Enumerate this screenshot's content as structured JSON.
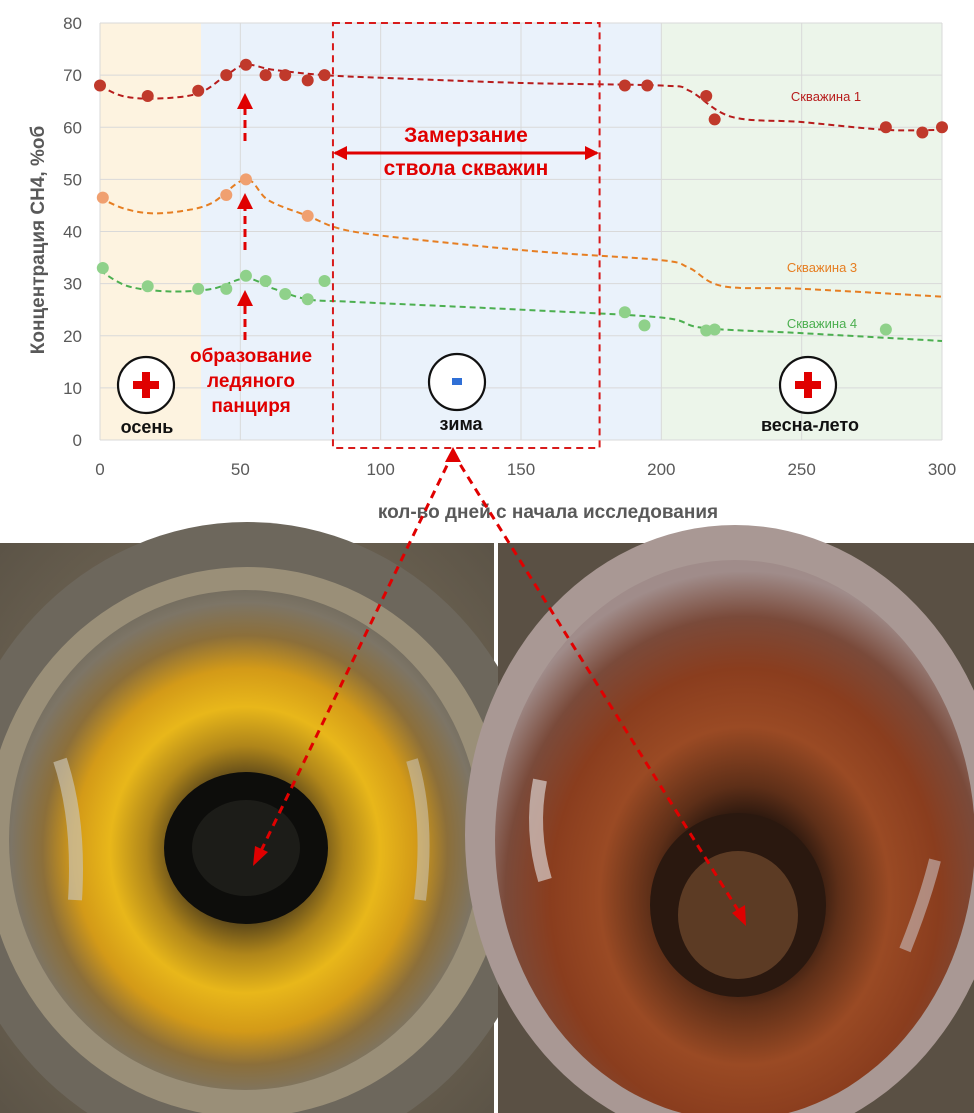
{
  "chart_data": {
    "type": "scatter",
    "title": "",
    "xlabel": "кол-во дней с начала исследования",
    "ylabel": "Концентрация СН4, %об",
    "xlim": [
      0,
      300
    ],
    "ylim": [
      0,
      80
    ],
    "x_ticks": [
      0,
      50,
      100,
      150,
      200,
      250,
      300
    ],
    "y_ticks": [
      0,
      10,
      20,
      30,
      40,
      50,
      60,
      70,
      80
    ],
    "grid": "on",
    "series": [
      {
        "name": "Скважина 1",
        "color": "#c0392b",
        "trend_color": "#b71c1c",
        "points": [
          [
            0,
            68
          ],
          [
            17,
            66
          ],
          [
            35,
            67
          ],
          [
            45,
            70
          ],
          [
            52,
            72
          ],
          [
            59,
            70
          ],
          [
            66,
            70
          ],
          [
            74,
            69
          ],
          [
            80,
            70
          ],
          [
            187,
            68
          ],
          [
            195,
            68
          ],
          [
            216,
            66
          ],
          [
            219,
            61.5
          ],
          [
            280,
            60
          ],
          [
            293,
            59
          ],
          [
            300,
            60
          ]
        ],
        "trend": [
          [
            0,
            68
          ],
          [
            8,
            66
          ],
          [
            20,
            65.5
          ],
          [
            35,
            66.5
          ],
          [
            45,
            70
          ],
          [
            52,
            72
          ],
          [
            62,
            71
          ],
          [
            80,
            70
          ],
          [
            100,
            69.5
          ],
          [
            150,
            68.5
          ],
          [
            200,
            68
          ],
          [
            210,
            67
          ],
          [
            225,
            62
          ],
          [
            250,
            61
          ],
          [
            280,
            59.5
          ],
          [
            300,
            59.5
          ]
        ]
      },
      {
        "name": "Скважина 3",
        "color": "#f0a070",
        "trend_color": "#e67e22",
        "points": [
          [
            1,
            46.5
          ],
          [
            45,
            47
          ],
          [
            52,
            50
          ],
          [
            74,
            43
          ]
        ],
        "trend": [
          [
            0,
            46.5
          ],
          [
            8,
            44.5
          ],
          [
            18,
            43.5
          ],
          [
            30,
            44
          ],
          [
            40,
            45.5
          ],
          [
            52,
            50
          ],
          [
            60,
            46
          ],
          [
            74,
            43
          ],
          [
            90,
            40
          ],
          [
            130,
            37.5
          ],
          [
            160,
            36
          ],
          [
            200,
            34.5
          ],
          [
            210,
            33
          ],
          [
            222,
            29.5
          ],
          [
            250,
            29
          ],
          [
            300,
            27.5
          ]
        ]
      },
      {
        "name": "Скважина 4",
        "color": "#8fd18a",
        "trend_color": "#4caf50",
        "points": [
          [
            1,
            33
          ],
          [
            17,
            29.5
          ],
          [
            35,
            29
          ],
          [
            45,
            29
          ],
          [
            52,
            31.5
          ],
          [
            59,
            30.5
          ],
          [
            66,
            28
          ],
          [
            74,
            27
          ],
          [
            80,
            30.5
          ],
          [
            187,
            24.5
          ],
          [
            194,
            22
          ],
          [
            216,
            21
          ],
          [
            219,
            21.2
          ],
          [
            280,
            21.2
          ]
        ],
        "trend": [
          [
            0,
            32.5
          ],
          [
            10,
            29.5
          ],
          [
            25,
            28.5
          ],
          [
            40,
            29
          ],
          [
            52,
            31
          ],
          [
            62,
            29
          ],
          [
            74,
            27
          ],
          [
            90,
            26.5
          ],
          [
            150,
            25
          ],
          [
            200,
            23.5
          ],
          [
            215,
            21.5
          ],
          [
            250,
            20.5
          ],
          [
            300,
            19
          ]
        ]
      }
    ],
    "seasons": [
      {
        "label": "осень",
        "sign": "+",
        "from": 0,
        "to": 36,
        "color": "#fdf3e0"
      },
      {
        "label": "зима",
        "sign": "-",
        "from": 36,
        "to": 200,
        "color": "#eaf2fb"
      },
      {
        "label": "весна-лето",
        "sign": "+",
        "from": 200,
        "to": 300,
        "color": "#ecf5ea"
      }
    ],
    "freeze_box": {
      "from": 83,
      "to": 178,
      "color": "#d81b1b"
    },
    "annotations": {
      "freeze_line1": "Замерзание",
      "freeze_line2": "ствола скважин",
      "ice_line1": "образование",
      "ice_line2": "ледяного",
      "ice_line3": "панциря"
    }
  },
  "photos": {
    "left": {
      "description_icon": "well-pipe-yellow-icon"
    },
    "right": {
      "description_icon": "well-pipe-rust-icon"
    }
  }
}
